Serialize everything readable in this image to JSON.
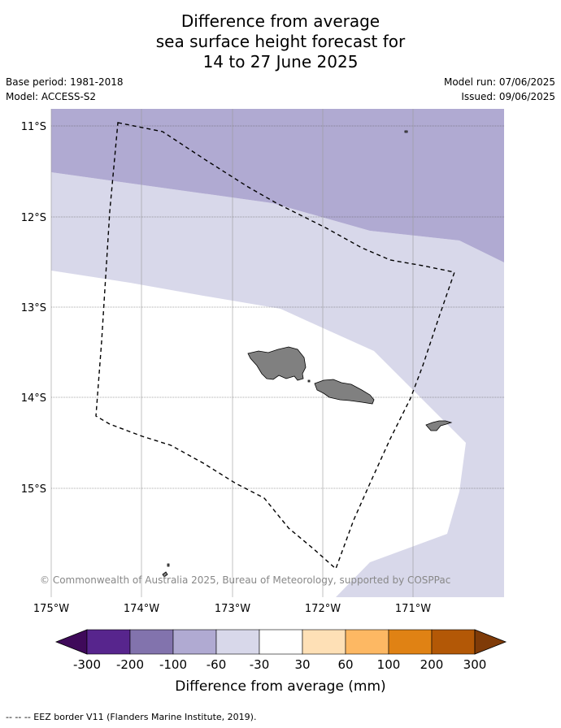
{
  "title": {
    "line1": "Difference from average",
    "line2": "sea surface height forecast for",
    "line3": "14 to 27 June 2025"
  },
  "meta": {
    "base_period": "Base period: 1981-2018",
    "model": "Model: ACCESS-S2",
    "model_run": "Model run: 07/06/2025",
    "issued": "Issued: 09/06/2025"
  },
  "map": {
    "lat_labels": [
      "11°S",
      "12°S",
      "13°S",
      "14°S",
      "15°S"
    ],
    "lon_labels": [
      "175°W",
      "174°W",
      "173°W",
      "172°W",
      "171°W"
    ],
    "copyright": "© Commonwealth of Australia 2025, Bureau of Meteorology, supported by COSPPac",
    "colors": {
      "anomaly_-100_-60": "#b0aad2",
      "anomaly_-60_-30": "#d8d8ea",
      "anomaly_-30_30": "#ffffff",
      "land": "#808080"
    }
  },
  "colorbar": {
    "title": "Difference from average (mm)",
    "tick_labels": [
      "-300",
      "-200",
      "-100",
      "-60",
      "-30",
      "30",
      "60",
      "100",
      "200",
      "300"
    ],
    "colors": [
      "#3f0a5a",
      "#57258d",
      "#8273ad",
      "#b0aad2",
      "#d8d8ea",
      "#ffffff",
      "#fee0b6",
      "#fdb863",
      "#e08214",
      "#b35806",
      "#7f3b08"
    ]
  },
  "footer": "--  --  -- EEZ border V11 (Flanders Marine Institute, 2019)."
}
